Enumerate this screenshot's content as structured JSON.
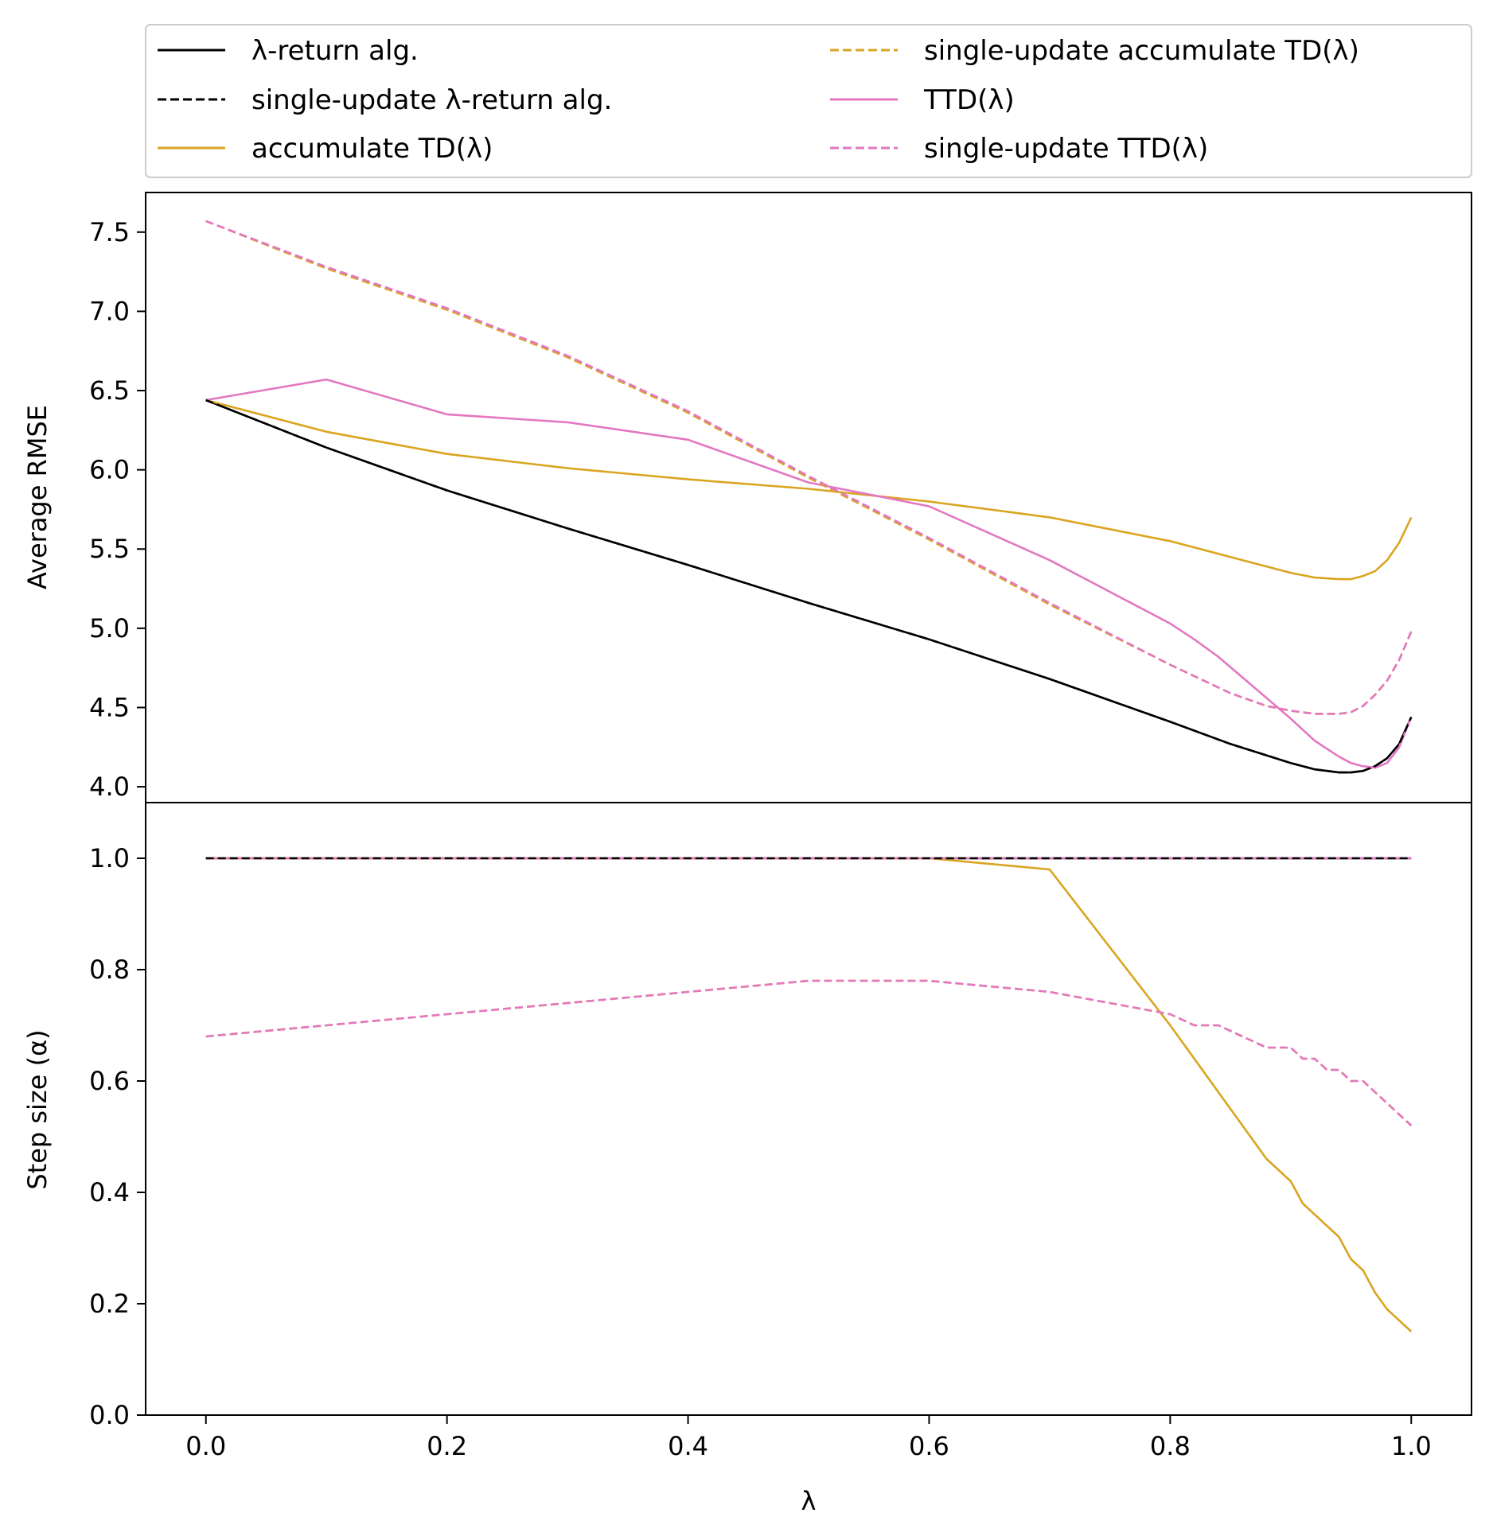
{
  "chart_data": [
    {
      "type": "line",
      "ylabel": "Average RMSE",
      "xlabel": "",
      "xlim": [
        -0.05,
        1.05
      ],
      "ylim": [
        3.9,
        7.75
      ],
      "xticks": [
        "0.0",
        "0.2",
        "0.4",
        "0.6",
        "0.8",
        "1.0"
      ],
      "yticks": [
        "4.0",
        "4.5",
        "5.0",
        "5.5",
        "6.0",
        "6.5",
        "7.0",
        "7.5"
      ],
      "grid": false,
      "legend": "above",
      "series": [
        {
          "name": "λ-return alg.",
          "color": "#000000",
          "dash": "solid",
          "x": [
            0.0,
            0.1,
            0.2,
            0.3,
            0.4,
            0.5,
            0.6,
            0.7,
            0.8,
            0.85,
            0.9,
            0.92,
            0.94,
            0.95,
            0.96,
            0.97,
            0.98,
            0.99,
            1.0
          ],
          "y": [
            6.44,
            6.14,
            5.87,
            5.63,
            5.4,
            5.16,
            4.93,
            4.68,
            4.41,
            4.27,
            4.15,
            4.11,
            4.09,
            4.09,
            4.1,
            4.13,
            4.18,
            4.27,
            4.44
          ]
        },
        {
          "name": "single-update λ-return alg.",
          "color": "#000000",
          "dash": "dashed",
          "x": [
            0.0,
            0.1,
            0.2,
            0.3,
            0.4,
            0.5,
            0.6,
            0.7,
            0.8,
            0.85,
            0.9,
            0.92,
            0.94,
            0.95,
            0.96,
            0.97,
            0.98,
            0.99,
            1.0
          ],
          "y": [
            6.44,
            6.14,
            5.87,
            5.63,
            5.4,
            5.16,
            4.93,
            4.68,
            4.41,
            4.27,
            4.15,
            4.11,
            4.09,
            4.09,
            4.1,
            4.13,
            4.18,
            4.27,
            4.44
          ]
        },
        {
          "name": "accumulate TD(λ)",
          "color": "#daa520",
          "dash": "solid",
          "x": [
            0.0,
            0.1,
            0.2,
            0.3,
            0.4,
            0.5,
            0.6,
            0.7,
            0.8,
            0.85,
            0.9,
            0.92,
            0.94,
            0.95,
            0.96,
            0.97,
            0.98,
            0.99,
            1.0
          ],
          "y": [
            6.44,
            6.24,
            6.1,
            6.01,
            5.94,
            5.88,
            5.8,
            5.7,
            5.55,
            5.45,
            5.35,
            5.32,
            5.31,
            5.31,
            5.33,
            5.36,
            5.43,
            5.54,
            5.7
          ]
        },
        {
          "name": "single-update accumulate TD(λ)",
          "color": "#daa520",
          "dash": "dashed",
          "x": [
            0.0,
            0.1,
            0.2,
            0.3,
            0.4,
            0.5,
            0.6,
            0.7,
            0.8,
            0.85,
            0.88,
            0.9,
            0.92,
            0.94,
            0.95,
            0.96,
            0.97,
            0.98,
            0.99,
            1.0
          ],
          "y": [
            7.57,
            7.27,
            7.01,
            6.71,
            6.36,
            5.95,
            5.56,
            5.15,
            4.77,
            4.59,
            4.51,
            4.48,
            4.46,
            4.46,
            4.47,
            4.51,
            4.58,
            4.67,
            4.8,
            4.98
          ]
        },
        {
          "name": "TTD(λ)",
          "color": "#e377c2",
          "dash": "solid",
          "x": [
            0.0,
            0.1,
            0.2,
            0.3,
            0.4,
            0.5,
            0.6,
            0.7,
            0.8,
            0.82,
            0.84,
            0.86,
            0.88,
            0.9,
            0.92,
            0.94,
            0.95,
            0.96,
            0.97,
            0.98,
            0.99,
            1.0
          ],
          "y": [
            6.44,
            6.57,
            6.35,
            6.3,
            6.19,
            5.92,
            5.77,
            5.43,
            5.03,
            4.93,
            4.82,
            4.69,
            4.56,
            4.43,
            4.29,
            4.19,
            4.15,
            4.13,
            4.12,
            4.15,
            4.25,
            4.44
          ]
        },
        {
          "name": "single-update TTD(λ)",
          "color": "#e377c2",
          "dash": "dashed",
          "x": [
            0.0,
            0.1,
            0.2,
            0.3,
            0.4,
            0.5,
            0.6,
            0.7,
            0.8,
            0.85,
            0.88,
            0.9,
            0.92,
            0.94,
            0.95,
            0.96,
            0.97,
            0.98,
            0.99,
            1.0
          ],
          "y": [
            7.57,
            7.28,
            7.02,
            6.72,
            6.37,
            5.96,
            5.57,
            5.16,
            4.77,
            4.59,
            4.51,
            4.48,
            4.46,
            4.46,
            4.47,
            4.51,
            4.58,
            4.67,
            4.8,
            4.98
          ]
        }
      ]
    },
    {
      "type": "line",
      "ylabel": "Step size (α)",
      "xlabel": "λ",
      "xlim": [
        -0.05,
        1.05
      ],
      "ylim": [
        0.0,
        1.1
      ],
      "xticks": [
        "0.0",
        "0.2",
        "0.4",
        "0.6",
        "0.8",
        "1.0"
      ],
      "yticks": [
        "0.0",
        "0.2",
        "0.4",
        "0.6",
        "0.8",
        "1.0"
      ],
      "grid": false,
      "series": [
        {
          "name": "λ-return alg.",
          "color": "#000000",
          "dash": "solid",
          "x": [
            0.0,
            1.0
          ],
          "y": [
            1.0,
            1.0
          ]
        },
        {
          "name": "single-update λ-return alg.",
          "color": "#000000",
          "dash": "dashed",
          "x": [
            0.0,
            1.0
          ],
          "y": [
            1.0,
            1.0
          ]
        },
        {
          "name": "accumulate TD(λ)",
          "color": "#daa520",
          "dash": "solid",
          "x": [
            0.0,
            0.6,
            0.7,
            0.8,
            0.88,
            0.9,
            0.91,
            0.94,
            0.95,
            0.96,
            0.97,
            0.98,
            1.0
          ],
          "y": [
            1.0,
            1.0,
            0.98,
            0.7,
            0.46,
            0.42,
            0.38,
            0.32,
            0.28,
            0.26,
            0.22,
            0.19,
            0.15
          ]
        },
        {
          "name": "single-update accumulate TD(λ)",
          "color": "#daa520",
          "dash": "dashed",
          "x": [
            0.0,
            0.1,
            0.2,
            0.3,
            0.4,
            0.5,
            0.6,
            0.7,
            0.8,
            0.82,
            0.84,
            0.86,
            0.88,
            0.9,
            0.91,
            0.92,
            0.93,
            0.94,
            0.95,
            0.96,
            0.97,
            0.98,
            0.99,
            1.0
          ],
          "y": [
            0.68,
            0.7,
            0.72,
            0.74,
            0.76,
            0.78,
            0.78,
            0.76,
            0.72,
            0.7,
            0.7,
            0.68,
            0.66,
            0.66,
            0.64,
            0.64,
            0.62,
            0.62,
            0.6,
            0.6,
            0.58,
            0.56,
            0.54,
            0.52
          ]
        },
        {
          "name": "TTD(λ)",
          "color": "#e377c2",
          "dash": "solid",
          "x": [
            0.0,
            1.0
          ],
          "y": [
            1.0,
            1.0
          ]
        },
        {
          "name": "single-update TTD(λ)",
          "color": "#e377c2",
          "dash": "dashed",
          "x": [
            0.0,
            0.1,
            0.2,
            0.3,
            0.4,
            0.5,
            0.6,
            0.7,
            0.8,
            0.82,
            0.84,
            0.86,
            0.88,
            0.9,
            0.91,
            0.92,
            0.93,
            0.94,
            0.95,
            0.96,
            0.97,
            0.98,
            0.99,
            1.0
          ],
          "y": [
            0.68,
            0.7,
            0.72,
            0.74,
            0.76,
            0.78,
            0.78,
            0.76,
            0.72,
            0.7,
            0.7,
            0.68,
            0.66,
            0.66,
            0.64,
            0.64,
            0.62,
            0.62,
            0.6,
            0.6,
            0.58,
            0.56,
            0.54,
            0.52
          ]
        }
      ]
    }
  ]
}
